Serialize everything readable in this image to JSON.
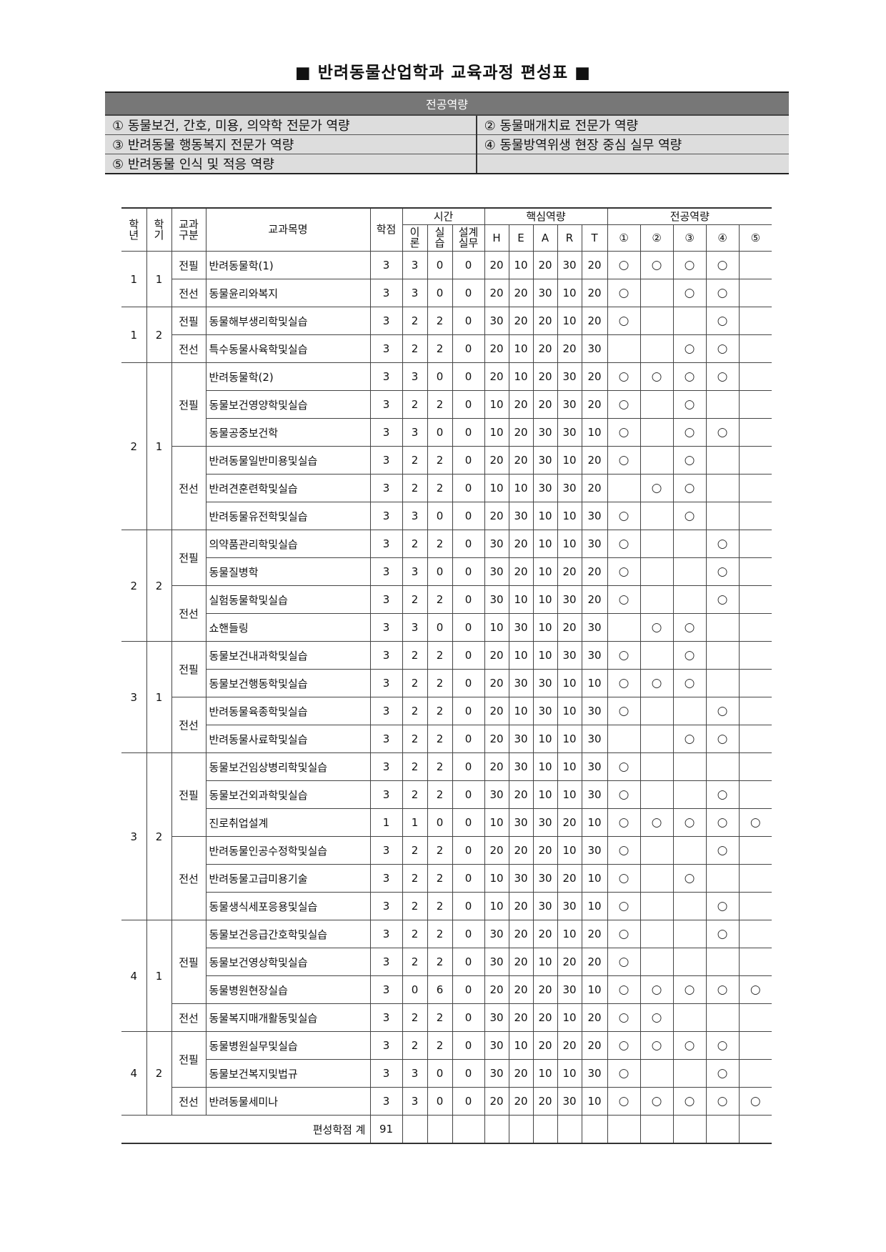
{
  "title": "■ 반려동물산업학과 교육과정 편성표 ■",
  "competency_box": {
    "header": "전공역량",
    "items": [
      "① 동물보건, 간호, 미용, 의약학 전문가 역량",
      "② 동물매개치료 전문가 역량",
      "③ 반려동물 행동복지 전문가 역량",
      "④ 동물방역위생 현장 중심 실무 역량",
      "⑤ 반려동물 인식 및 적응 역량",
      ""
    ]
  },
  "table": {
    "headers": {
      "year": "학\n년",
      "semester": "학\n기",
      "type": "교과\n구분",
      "name": "교과목명",
      "credit": "학점",
      "time": "시간",
      "theory": "이\n론",
      "practice": "실\n습",
      "design": "설계\n실무",
      "core": "핵심역량",
      "core_cols": [
        "H",
        "E",
        "A",
        "R",
        "T"
      ],
      "major": "전공역량",
      "major_cols": [
        "①",
        "②",
        "③",
        "④",
        "⑤"
      ]
    },
    "mark": "○",
    "semesters": [
      {
        "year": "1",
        "semester": "1",
        "groups": [
          {
            "type": "전필",
            "courses": [
              [
                "반려동물학(1)",
                "3",
                "3",
                "0",
                "0",
                "20",
                "10",
                "20",
                "30",
                "20",
                [
                  1,
                  2,
                  3,
                  4
                ]
              ]
            ]
          },
          {
            "type": "전선",
            "courses": [
              [
                "동물윤리와복지",
                "3",
                "3",
                "0",
                "0",
                "20",
                "20",
                "30",
                "10",
                "20",
                [
                  1,
                  3,
                  4
                ]
              ]
            ]
          }
        ]
      },
      {
        "year": "1",
        "semester": "2",
        "groups": [
          {
            "type": "전필",
            "courses": [
              [
                "동물해부생리학및실습",
                "3",
                "2",
                "2",
                "0",
                "30",
                "20",
                "20",
                "10",
                "20",
                [
                  1,
                  4
                ]
              ]
            ]
          },
          {
            "type": "전선",
            "courses": [
              [
                "특수동물사육학및실습",
                "3",
                "2",
                "2",
                "0",
                "20",
                "10",
                "20",
                "20",
                "30",
                [
                  3,
                  4
                ]
              ]
            ]
          }
        ]
      },
      {
        "year": "2",
        "semester": "1",
        "groups": [
          {
            "type": "전필",
            "courses": [
              [
                "반려동물학(2)",
                "3",
                "3",
                "0",
                "0",
                "20",
                "10",
                "20",
                "30",
                "20",
                [
                  1,
                  2,
                  3,
                  4
                ]
              ],
              [
                "동물보건영양학및실습",
                "3",
                "2",
                "2",
                "0",
                "10",
                "20",
                "20",
                "30",
                "20",
                [
                  1,
                  3
                ]
              ],
              [
                "동물공중보건학",
                "3",
                "3",
                "0",
                "0",
                "10",
                "20",
                "30",
                "30",
                "10",
                [
                  1,
                  3,
                  4
                ]
              ]
            ]
          },
          {
            "type": "전선",
            "courses": [
              [
                "반려동물일반미용및실습",
                "3",
                "2",
                "2",
                "0",
                "20",
                "20",
                "30",
                "10",
                "20",
                [
                  1,
                  3
                ]
              ],
              [
                "반려견훈련학및실습",
                "3",
                "2",
                "2",
                "0",
                "10",
                "10",
                "30",
                "30",
                "20",
                [
                  2,
                  3
                ]
              ],
              [
                "반려동물유전학및실습",
                "3",
                "3",
                "0",
                "0",
                "20",
                "30",
                "10",
                "10",
                "30",
                [
                  1,
                  3
                ]
              ]
            ]
          }
        ]
      },
      {
        "year": "2",
        "semester": "2",
        "groups": [
          {
            "type": "전필",
            "courses": [
              [
                "의약품관리학및실습",
                "3",
                "2",
                "2",
                "0",
                "30",
                "20",
                "10",
                "10",
                "30",
                [
                  1,
                  4
                ]
              ],
              [
                "동물질병학",
                "3",
                "3",
                "0",
                "0",
                "30",
                "20",
                "10",
                "20",
                "20",
                [
                  1,
                  4
                ]
              ]
            ]
          },
          {
            "type": "전선",
            "courses": [
              [
                "실험동물학및실습",
                "3",
                "2",
                "2",
                "0",
                "30",
                "10",
                "10",
                "30",
                "20",
                [
                  1,
                  4
                ]
              ],
              [
                "쇼핸들링",
                "3",
                "3",
                "0",
                "0",
                "10",
                "30",
                "10",
                "20",
                "30",
                [
                  2,
                  3
                ]
              ]
            ]
          }
        ]
      },
      {
        "year": "3",
        "semester": "1",
        "groups": [
          {
            "type": "전필",
            "courses": [
              [
                "동물보건내과학및실습",
                "3",
                "2",
                "2",
                "0",
                "20",
                "10",
                "10",
                "30",
                "30",
                [
                  1,
                  3
                ]
              ],
              [
                "동물보건행동학및실습",
                "3",
                "2",
                "2",
                "0",
                "20",
                "30",
                "30",
                "10",
                "10",
                [
                  1,
                  2,
                  3
                ]
              ]
            ]
          },
          {
            "type": "전선",
            "courses": [
              [
                "반려동물육종학및실습",
                "3",
                "2",
                "2",
                "0",
                "20",
                "10",
                "30",
                "10",
                "30",
                [
                  1,
                  4
                ]
              ],
              [
                "반려동물사료학및실습",
                "3",
                "2",
                "2",
                "0",
                "20",
                "30",
                "10",
                "10",
                "30",
                [
                  3,
                  4
                ]
              ]
            ]
          }
        ]
      },
      {
        "year": "3",
        "semester": "2",
        "groups": [
          {
            "type": "전필",
            "courses": [
              [
                "동물보건임상병리학및실습",
                "3",
                "2",
                "2",
                "0",
                "20",
                "30",
                "10",
                "10",
                "30",
                [
                  1
                ]
              ],
              [
                "동물보건외과학및실습",
                "3",
                "2",
                "2",
                "0",
                "30",
                "20",
                "10",
                "10",
                "30",
                [
                  1,
                  4
                ]
              ],
              [
                "진로취업설계",
                "1",
                "1",
                "0",
                "0",
                "10",
                "30",
                "30",
                "20",
                "10",
                [
                  1,
                  2,
                  3,
                  4,
                  5
                ]
              ]
            ]
          },
          {
            "type": "전선",
            "courses": [
              [
                "반려동물인공수정학및실습",
                "3",
                "2",
                "2",
                "0",
                "20",
                "20",
                "20",
                "10",
                "30",
                [
                  1,
                  4
                ]
              ],
              [
                "반려동물고급미용기술",
                "3",
                "2",
                "2",
                "0",
                "10",
                "30",
                "30",
                "20",
                "10",
                [
                  1,
                  3
                ]
              ],
              [
                "동물생식세포응용및실습",
                "3",
                "2",
                "2",
                "0",
                "10",
                "20",
                "30",
                "30",
                "10",
                [
                  1,
                  4
                ]
              ]
            ]
          }
        ]
      },
      {
        "year": "4",
        "semester": "1",
        "groups": [
          {
            "type": "전필",
            "courses": [
              [
                "동물보건응급간호학및실습",
                "3",
                "2",
                "2",
                "0",
                "30",
                "20",
                "20",
                "10",
                "20",
                [
                  1,
                  4
                ]
              ],
              [
                "동물보건영상학및실습",
                "3",
                "2",
                "2",
                "0",
                "30",
                "20",
                "10",
                "20",
                "20",
                [
                  1
                ]
              ],
              [
                "동물병원현장실습",
                "3",
                "0",
                "6",
                "0",
                "20",
                "20",
                "20",
                "30",
                "10",
                [
                  1,
                  2,
                  3,
                  4,
                  5
                ]
              ]
            ]
          },
          {
            "type": "전선",
            "courses": [
              [
                "동물복지매개활동및실습",
                "3",
                "2",
                "2",
                "0",
                "30",
                "20",
                "20",
                "10",
                "20",
                [
                  1,
                  2
                ]
              ]
            ]
          }
        ]
      },
      {
        "year": "4",
        "semester": "2",
        "groups": [
          {
            "type": "전필",
            "courses": [
              [
                "동물병원실무및실습",
                "3",
                "2",
                "2",
                "0",
                "30",
                "10",
                "20",
                "20",
                "20",
                [
                  1,
                  2,
                  3,
                  4
                ]
              ],
              [
                "동물보건복지및법규",
                "3",
                "3",
                "0",
                "0",
                "30",
                "20",
                "10",
                "10",
                "30",
                [
                  1,
                  4
                ]
              ]
            ]
          },
          {
            "type": "전선",
            "courses": [
              [
                "반려동물세미나",
                "3",
                "3",
                "0",
                "0",
                "20",
                "20",
                "20",
                "30",
                "10",
                [
                  1,
                  2,
                  3,
                  4,
                  5
                ]
              ]
            ]
          }
        ]
      }
    ],
    "total_label": "편성학점 계",
    "total_credits": "91"
  }
}
